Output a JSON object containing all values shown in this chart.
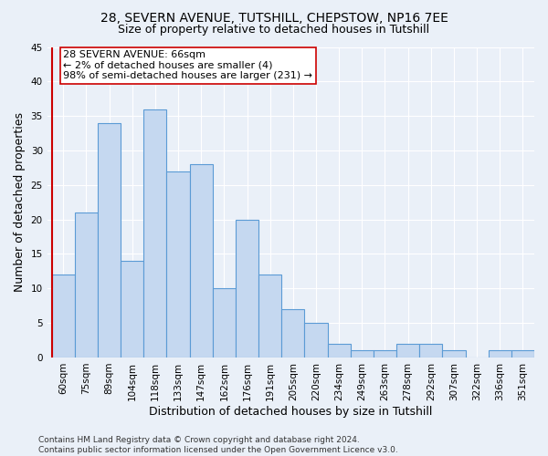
{
  "title_line1": "28, SEVERN AVENUE, TUTSHILL, CHEPSTOW, NP16 7EE",
  "title_line2": "Size of property relative to detached houses in Tutshill",
  "xlabel": "Distribution of detached houses by size in Tutshill",
  "ylabel": "Number of detached properties",
  "categories": [
    "60sqm",
    "75sqm",
    "89sqm",
    "104sqm",
    "118sqm",
    "133sqm",
    "147sqm",
    "162sqm",
    "176sqm",
    "191sqm",
    "205sqm",
    "220sqm",
    "234sqm",
    "249sqm",
    "263sqm",
    "278sqm",
    "292sqm",
    "307sqm",
    "322sqm",
    "336sqm",
    "351sqm"
  ],
  "values": [
    12,
    21,
    34,
    14,
    36,
    27,
    28,
    10,
    20,
    12,
    7,
    5,
    2,
    1,
    1,
    2,
    2,
    1,
    0,
    1,
    1
  ],
  "bar_color": "#c5d8f0",
  "bar_edge_color": "#5b9bd5",
  "highlight_line_color": "#cc0000",
  "annotation_line1": "28 SEVERN AVENUE: 66sqm",
  "annotation_line2": "← 2% of detached houses are smaller (4)",
  "annotation_line3": "98% of semi-detached houses are larger (231) →",
  "annotation_box_color": "#ffffff",
  "annotation_box_edge_color": "#cc0000",
  "ylim": [
    0,
    45
  ],
  "yticks": [
    0,
    5,
    10,
    15,
    20,
    25,
    30,
    35,
    40,
    45
  ],
  "footnote": "Contains HM Land Registry data © Crown copyright and database right 2024.\nContains public sector information licensed under the Open Government Licence v3.0.",
  "background_color": "#eaf0f8",
  "plot_bg_color": "#eaf0f8",
  "grid_color": "#ffffff",
  "title_fontsize": 10,
  "subtitle_fontsize": 9,
  "axis_label_fontsize": 9,
  "tick_fontsize": 7.5,
  "annotation_fontsize": 8,
  "footnote_fontsize": 6.5
}
